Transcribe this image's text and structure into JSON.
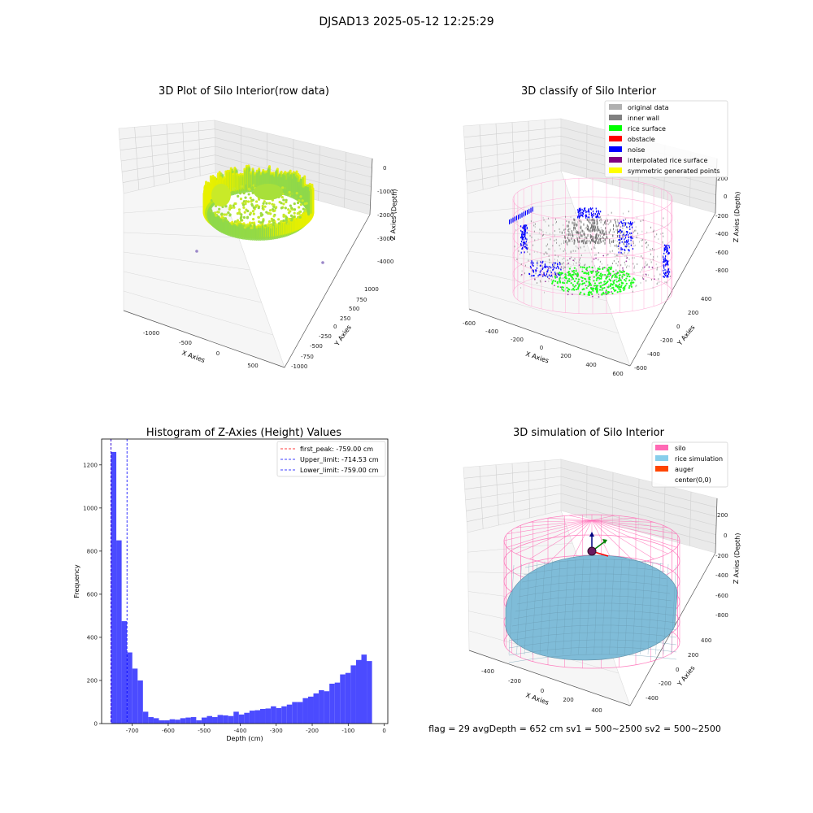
{
  "figure": {
    "suptitle": "DJSAD13 2025-05-12 12:25:29",
    "footer": "flag = 29  avgDepth = 652 cm  sv1 = 500~2500  sv2 = 500~2500"
  },
  "panels": {
    "raw": {
      "title": "3D Plot of Silo Interior(row data)",
      "xlabel": "X Axies",
      "ylabel": "Y Axies",
      "zlabel": "Z Axies (Depth)",
      "xticks": [
        "-1000",
        "-500",
        "0",
        "500"
      ],
      "yticks": [
        "1000",
        "750",
        "500",
        "250",
        "0",
        "-250",
        "-500",
        "-750",
        "-1000"
      ],
      "zticks": [
        "0",
        "-1000",
        "-2000",
        "-3000",
        "-4000"
      ]
    },
    "classify": {
      "title": "3D classify of Silo Interior",
      "xlabel": "X Axies",
      "ylabel": "Y Axies",
      "zlabel": "Z Axies (Depth)",
      "xticks": [
        "-600",
        "-400",
        "-200",
        "0",
        "200",
        "400",
        "600"
      ],
      "yticks": [
        "400",
        "200",
        "0",
        "-200",
        "-400",
        "-600"
      ],
      "zticks": [
        "200",
        "0",
        "-200",
        "-400",
        "-600",
        "-800"
      ],
      "legend": [
        {
          "label": "original data",
          "color": "#b0b0b0"
        },
        {
          "label": "inner wall",
          "color": "#808080"
        },
        {
          "label": "rice surface",
          "color": "#00ff00"
        },
        {
          "label": "obstacle",
          "color": "#ff0000"
        },
        {
          "label": "noise",
          "color": "#0000ff"
        },
        {
          "label": "interpolated rice surface",
          "color": "#800080"
        },
        {
          "label": "symmetric generated points",
          "color": "#ffff00"
        }
      ]
    },
    "simulation": {
      "title": "3D simulation of Silo Interior",
      "xlabel": "X Axies",
      "ylabel": "Y Axies",
      "zlabel": "Z Axies (Depth)",
      "xticks": [
        "-400",
        "-200",
        "0",
        "200",
        "400"
      ],
      "yticks": [
        "400",
        "200",
        "0",
        "-200",
        "-400"
      ],
      "zticks": [
        "200",
        "0",
        "-200",
        "-400",
        "-600",
        "-800"
      ],
      "legend": [
        {
          "label": "silo",
          "color": "#ff69b4"
        },
        {
          "label": "rice simulation",
          "color": "#87ceeb"
        },
        {
          "label": "auger",
          "color": "#ff4500"
        },
        {
          "label": "center(0,0)",
          "color": ""
        }
      ]
    }
  },
  "chart_data": {
    "type": "bar",
    "title": "Histogram of Z-Axies (Height) Values",
    "xlabel": "Depth (cm)",
    "ylabel": "Frequency",
    "xlim": [
      -785,
      10
    ],
    "ylim": [
      0,
      1320
    ],
    "xticks": [
      -700,
      -600,
      -500,
      -400,
      -300,
      -200,
      -100,
      0
    ],
    "yticks": [
      0,
      200,
      400,
      600,
      800,
      1000,
      1200
    ],
    "bar_color": "#4b4bff",
    "bin_width": 14.8,
    "bin_start": -759,
    "values": [
      1260,
      850,
      475,
      330,
      255,
      200,
      55,
      30,
      25,
      15,
      15,
      20,
      18,
      25,
      28,
      30,
      15,
      28,
      35,
      30,
      40,
      38,
      35,
      55,
      42,
      50,
      60,
      62,
      68,
      70,
      80,
      72,
      80,
      88,
      100,
      100,
      118,
      125,
      140,
      155,
      150,
      185,
      190,
      228,
      235,
      270,
      295,
      320,
      290
    ],
    "lines": [
      {
        "label": "first_peak: -759.00 cm",
        "x": -759.0,
        "color": "#ff0000"
      },
      {
        "label": "Upper_limit: -714.53 cm",
        "x": -714.53,
        "color": "#0000ff"
      },
      {
        "label": "Lower_limit: -759.00 cm",
        "x": -759.0,
        "color": "#0000ff"
      }
    ],
    "legend_position": "top-right"
  }
}
